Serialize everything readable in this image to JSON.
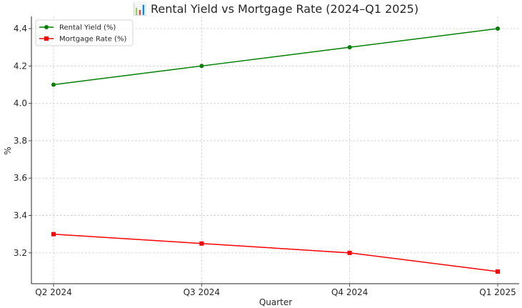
{
  "chart_data": {
    "type": "line",
    "title": "📊 Rental Yield vs Mortgage Rate (2024–Q1 2025)",
    "xlabel": "Quarter",
    "ylabel": "%",
    "categories": [
      "Q2 2024",
      "Q3 2024",
      "Q4 2024",
      "Q1 2025"
    ],
    "ylim": [
      3.035,
      4.465
    ],
    "yticks": [
      "3.2",
      "3.4",
      "3.6",
      "3.8",
      "4.0",
      "4.2",
      "4.4"
    ],
    "grid": true,
    "legend_position": "top-left",
    "series": [
      {
        "name": "Rental Yield (%)",
        "values": [
          4.1,
          4.2,
          4.3,
          4.4
        ],
        "color": "#008000",
        "marker": "circle"
      },
      {
        "name": "Mortgage Rate (%)",
        "values": [
          3.3,
          3.25,
          3.2,
          3.1
        ],
        "color": "#ff0000",
        "marker": "square"
      }
    ]
  }
}
